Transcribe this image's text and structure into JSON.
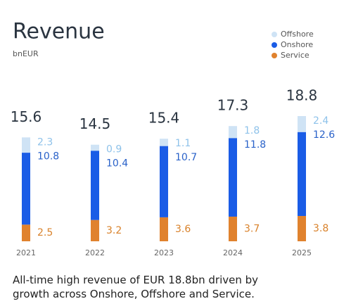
{
  "chart_data": {
    "type": "stacked_bar",
    "title": "Revenue",
    "subtitle": "bnEUR",
    "categories": [
      "2021",
      "2022",
      "2023",
      "2024",
      "2025"
    ],
    "series": [
      {
        "name": "Service",
        "color": "#e0822e",
        "label_color": "#d9822b",
        "values": [
          2.5,
          3.2,
          3.6,
          3.7,
          3.8
        ]
      },
      {
        "name": "Onshore",
        "color": "#1a5ce6",
        "label_color": "#2a62c9",
        "values": [
          10.8,
          10.4,
          10.7,
          11.8,
          12.6
        ]
      },
      {
        "name": "Offshore",
        "color": "#cfe3f5",
        "label_color": "#8ec2ea",
        "values": [
          2.3,
          0.9,
          1.1,
          1.8,
          2.4
        ]
      }
    ],
    "totals": [
      15.6,
      14.5,
      15.4,
      17.3,
      18.8
    ],
    "footnote": "All-time high revenue of EUR 18.8bn driven by growth across Onshore, Offshore and Service."
  }
}
